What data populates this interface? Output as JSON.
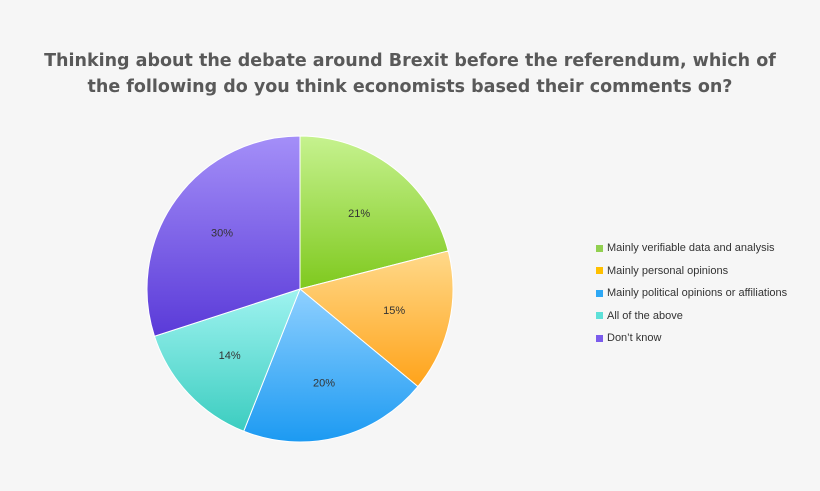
{
  "chart_data": {
    "type": "pie",
    "title": "Thinking about the debate around Brexit before the referendum, which of the following do you think economists based their comments on?",
    "title_lines": [
      "Thinking about the debate around Brexit before the referendum, which of",
      "the following do you think economists based their comments on?"
    ],
    "categories": [
      "Mainly verifiable data and analysis",
      "Mainly personal opinions",
      "Mainly political opinions or affiliations",
      "All of the above",
      "Don’t know"
    ],
    "values": [
      21,
      15,
      20,
      14,
      30
    ],
    "value_labels": [
      "21%",
      "15%",
      "20%",
      "14%",
      "30%"
    ],
    "colors": [
      "#92d050",
      "#ffc000",
      "#2ea8f5",
      "#5ee0d8",
      "#7b5cec"
    ],
    "legend_position": "right",
    "start_angle_deg": 0,
    "direction": "clockwise"
  }
}
